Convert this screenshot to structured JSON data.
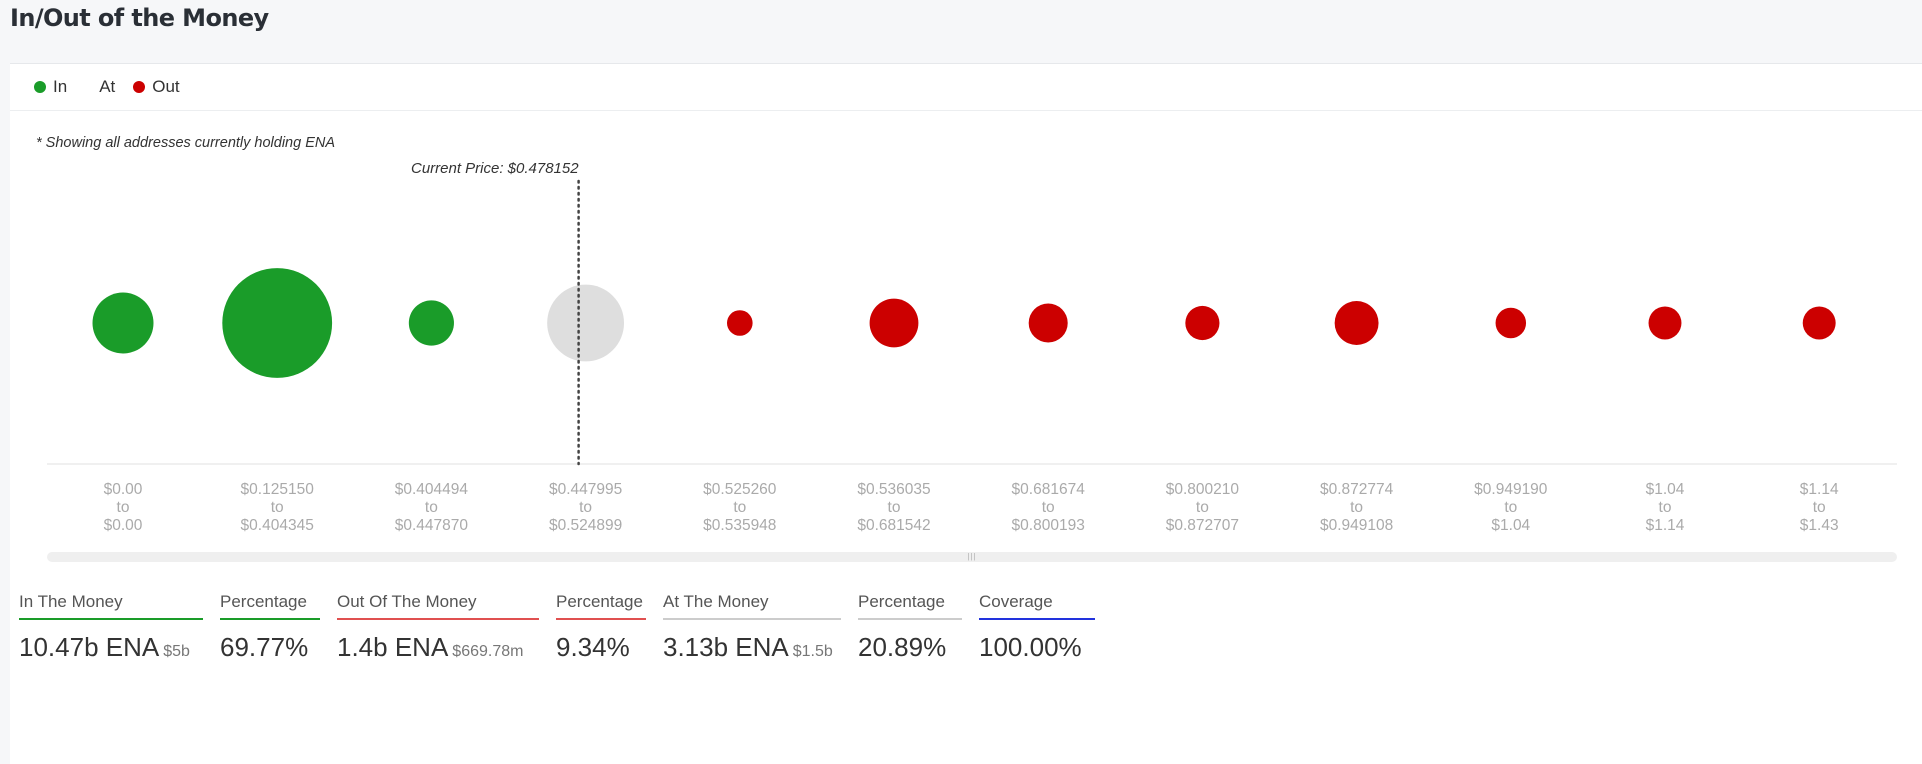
{
  "page": {
    "title": "In/Out of the Money"
  },
  "legend": [
    {
      "label": "In",
      "color": "#1a9c29"
    },
    {
      "label": "At",
      "color": ""
    },
    {
      "label": "Out",
      "color": "#cc0000"
    }
  ],
  "note": "* Showing all addresses currently holding ENA",
  "chart_data": {
    "type": "scatter",
    "title": "",
    "annotation": "Current Price: $0.478152",
    "current_price": 0.478152,
    "colors": {
      "in": "#1a9c29",
      "at": "#dedede",
      "out": "#cc0000"
    },
    "buckets": [
      {
        "from": "$0.00",
        "to": "$0.00",
        "status": "in",
        "size": 50
      },
      {
        "from": "$0.125150",
        "to": "$0.404345",
        "status": "in",
        "size": 90
      },
      {
        "from": "$0.404494",
        "to": "$0.447870",
        "status": "in",
        "size": 37
      },
      {
        "from": "$0.447995",
        "to": "$0.524899",
        "status": "at",
        "size": 63
      },
      {
        "from": "$0.525260",
        "to": "$0.535948",
        "status": "out",
        "size": 21
      },
      {
        "from": "$0.536035",
        "to": "$0.681542",
        "status": "out",
        "size": 40
      },
      {
        "from": "$0.681674",
        "to": "$0.800193",
        "status": "out",
        "size": 32
      },
      {
        "from": "$0.800210",
        "to": "$0.872707",
        "status": "out",
        "size": 28
      },
      {
        "from": "$0.872774",
        "to": "$0.949108",
        "status": "out",
        "size": 36
      },
      {
        "from": "$0.949190",
        "to": "$1.04",
        "status": "out",
        "size": 25
      },
      {
        "from": "$1.04",
        "to": "$1.14",
        "status": "out",
        "size": 27
      },
      {
        "from": "$1.14",
        "to": "$1.43",
        "status": "out",
        "size": 27
      }
    ],
    "tick_joiner": "to"
  },
  "summary": {
    "in_the_money": {
      "label": "In The Money",
      "value": "10.47b ENA",
      "sub": "$5b",
      "color": "#1a9c29"
    },
    "in_pct": {
      "label": "Percentage",
      "value": "69.77%",
      "color": "#1a9c29"
    },
    "out_the_money": {
      "label": "Out Of The Money",
      "value": "1.4b ENA",
      "sub": "$669.78m",
      "color": "#e05050"
    },
    "out_pct": {
      "label": "Percentage",
      "value": "9.34%",
      "color": "#e05050"
    },
    "at_the_money": {
      "label": "At The Money",
      "value": "3.13b ENA",
      "sub": "$1.5b",
      "color": "#cccccc"
    },
    "at_pct": {
      "label": "Percentage",
      "value": "20.89%",
      "color": "#cccccc"
    },
    "coverage": {
      "label": "Coverage",
      "value": "100.00%",
      "color": "#2233dd"
    }
  }
}
